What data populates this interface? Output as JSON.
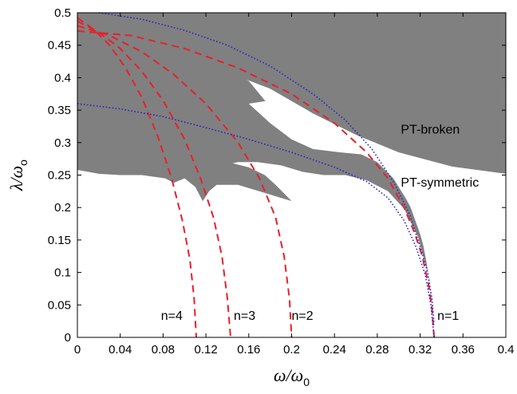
{
  "chart_data": {
    "type": "line",
    "xlabel": "ω/ω",
    "xlabel_sub": "0",
    "ylabel": "λ/ω",
    "ylabel_sub": "o",
    "xlim": [
      0,
      0.4
    ],
    "ylim": [
      0,
      0.5
    ],
    "xticks": [
      "0",
      "0.04",
      "0.08",
      "0.12",
      "0.16",
      "0.2",
      "0.24",
      "0.28",
      "0.32",
      "0.36",
      "0.4"
    ],
    "yticks": [
      "0",
      "0.05",
      "0.1",
      "0.15",
      "0.2",
      "0.25",
      "0.3",
      "0.35",
      "0.4",
      "0.45",
      "0.5"
    ],
    "grid": false,
    "regions": [
      {
        "label": "PT-broken",
        "color": "#808080",
        "boundary": [
          [
            0,
            0.5
          ],
          [
            0.4,
            0.5
          ],
          [
            0.4,
            0.252
          ],
          [
            0.35,
            0.263
          ],
          [
            0.3,
            0.285
          ],
          [
            0.26,
            0.312
          ],
          [
            0.22,
            0.345
          ],
          [
            0.18,
            0.383
          ],
          [
            0.15,
            0.402
          ],
          [
            0.145,
            0.41
          ],
          [
            0.16,
            0.395
          ],
          [
            0.18,
            0.355
          ],
          [
            0.21,
            0.325
          ],
          [
            0.24,
            0.31
          ],
          [
            0.265,
            0.292
          ],
          [
            0.285,
            0.265
          ],
          [
            0.3,
            0.235
          ],
          [
            0.315,
            0.188
          ],
          [
            0.325,
            0.13
          ],
          [
            0.331,
            0.05
          ],
          [
            0.333,
            0.0
          ],
          [
            0.333,
            0.02
          ],
          [
            0.327,
            0.1
          ],
          [
            0.318,
            0.155
          ],
          [
            0.305,
            0.198
          ],
          [
            0.29,
            0.225
          ],
          [
            0.27,
            0.242
          ],
          [
            0.25,
            0.25
          ],
          [
            0.23,
            0.25
          ],
          [
            0.21,
            0.255
          ],
          [
            0.19,
            0.265
          ],
          [
            0.168,
            0.27
          ],
          [
            0.15,
            0.27
          ],
          [
            0.145,
            0.268
          ],
          [
            0.16,
            0.262
          ],
          [
            0.175,
            0.25
          ],
          [
            0.185,
            0.235
          ],
          [
            0.2,
            0.21
          ],
          [
            0.15,
            0.235
          ],
          [
            0.13,
            0.235
          ],
          [
            0.123,
            0.225
          ],
          [
            0.117,
            0.21
          ],
          [
            0.11,
            0.232
          ],
          [
            0.1,
            0.245
          ],
          [
            0.09,
            0.238
          ],
          [
            0.082,
            0.245
          ],
          [
            0.06,
            0.25
          ],
          [
            0.04,
            0.25
          ],
          [
            0.02,
            0.252
          ],
          [
            0.0,
            0.258
          ]
        ]
      },
      {
        "label": "PT-symmetric",
        "color": "#ffffff",
        "boundary": [
          [
            0.16,
            0.36
          ],
          [
            0.18,
            0.33
          ],
          [
            0.2,
            0.305
          ],
          [
            0.22,
            0.29
          ],
          [
            0.245,
            0.285
          ],
          [
            0.265,
            0.282
          ],
          [
            0.28,
            0.27
          ],
          [
            0.295,
            0.245
          ],
          [
            0.31,
            0.205
          ],
          [
            0.322,
            0.15
          ],
          [
            0.33,
            0.08
          ],
          [
            0.333,
            0.0
          ],
          [
            0.335,
            0.0
          ],
          [
            0.335,
            0.15
          ],
          [
            0.33,
            0.21
          ],
          [
            0.32,
            0.25
          ],
          [
            0.3,
            0.28
          ],
          [
            0.27,
            0.3
          ],
          [
            0.245,
            0.315
          ],
          [
            0.22,
            0.33
          ],
          [
            0.2,
            0.345
          ],
          [
            0.18,
            0.365
          ]
        ]
      }
    ],
    "series": [
      {
        "name": "n=1",
        "style": "dashed",
        "color": "#e8202a",
        "x": [
          0.0,
          0.05,
          0.1,
          0.15,
          0.2,
          0.24,
          0.27,
          0.29,
          0.305,
          0.315,
          0.322,
          0.328,
          0.331,
          0.333
        ],
        "y": [
          0.472,
          0.465,
          0.445,
          0.415,
          0.375,
          0.33,
          0.285,
          0.245,
          0.2,
          0.16,
          0.125,
          0.08,
          0.045,
          0.0
        ]
      },
      {
        "name": "n=2",
        "style": "dashed",
        "color": "#e8202a",
        "x": [
          0.0,
          0.03,
          0.06,
          0.09,
          0.12,
          0.15,
          0.17,
          0.185,
          0.193,
          0.198,
          0.2
        ],
        "y": [
          0.48,
          0.465,
          0.44,
          0.405,
          0.36,
          0.3,
          0.245,
          0.185,
          0.125,
          0.06,
          0.0
        ]
      },
      {
        "name": "n=3",
        "style": "dashed",
        "color": "#e8202a",
        "x": [
          0.0,
          0.02,
          0.04,
          0.06,
          0.08,
          0.1,
          0.115,
          0.127,
          0.135,
          0.14,
          0.143
        ],
        "y": [
          0.487,
          0.47,
          0.445,
          0.41,
          0.365,
          0.305,
          0.245,
          0.185,
          0.125,
          0.06,
          0.0
        ]
      },
      {
        "name": "n=4",
        "style": "dashed",
        "color": "#e8202a",
        "x": [
          0.0,
          0.015,
          0.03,
          0.045,
          0.06,
          0.075,
          0.088,
          0.098,
          0.105,
          0.109,
          0.111
        ],
        "y": [
          0.492,
          0.475,
          0.45,
          0.415,
          0.37,
          0.31,
          0.245,
          0.18,
          0.12,
          0.06,
          0.0
        ]
      },
      {
        "name": "",
        "style": "dotted",
        "color": "#2020c8",
        "x": [
          0.02,
          0.06,
          0.1,
          0.14,
          0.18,
          0.22,
          0.25,
          0.275,
          0.295,
          0.31,
          0.32,
          0.327,
          0.331,
          0.333
        ],
        "y": [
          0.5,
          0.49,
          0.473,
          0.45,
          0.418,
          0.375,
          0.335,
          0.29,
          0.24,
          0.19,
          0.14,
          0.1,
          0.06,
          0.02
        ]
      },
      {
        "name": "",
        "style": "dotted",
        "color": "#2020c8",
        "x": [
          0.0,
          0.04,
          0.08,
          0.12,
          0.16,
          0.2,
          0.24,
          0.27,
          0.29,
          0.305,
          0.316,
          0.325,
          0.33,
          0.333
        ],
        "y": [
          0.36,
          0.352,
          0.34,
          0.323,
          0.305,
          0.285,
          0.262,
          0.24,
          0.215,
          0.18,
          0.14,
          0.095,
          0.05,
          0.0
        ]
      }
    ],
    "annotations": [
      {
        "text": "PT-broken",
        "x": 0.302,
        "y": 0.314
      },
      {
        "text": "PT-symmetric",
        "x": 0.302,
        "y": 0.232
      },
      {
        "text": "n=4",
        "x": 0.078,
        "y": 0.027
      },
      {
        "text": "n=3",
        "x": 0.146,
        "y": 0.027
      },
      {
        "text": "n=2",
        "x": 0.2,
        "y": 0.027
      },
      {
        "text": "n=1",
        "x": 0.336,
        "y": 0.027
      }
    ]
  }
}
